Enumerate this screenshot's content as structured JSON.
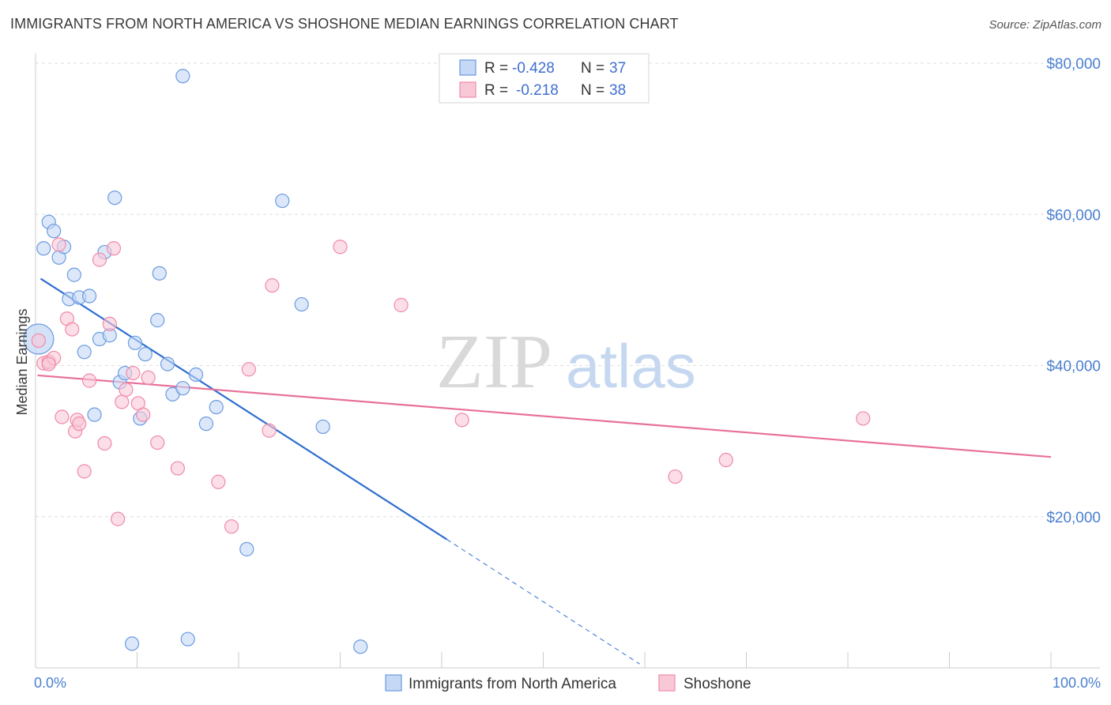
{
  "header": {
    "title": "IMMIGRANTS FROM NORTH AMERICA VS SHOSHONE MEDIAN EARNINGS CORRELATION CHART",
    "source": "Source: ZipAtlas.com"
  },
  "watermark": {
    "zip": "ZIP",
    "atlas": "atlas"
  },
  "legend": {
    "rows": [
      {
        "r_label": "R =",
        "r_value": "-0.428",
        "n_label": "N =",
        "n_value": "37"
      },
      {
        "r_label": "R =",
        "r_value": "-0.218",
        "n_label": "N =",
        "n_value": "38"
      }
    ]
  },
  "bottom_legend": {
    "series1": "Immigrants from North America",
    "series2": "Shoshone"
  },
  "colors": {
    "blue": "#6b9be0",
    "pink": "#f08aa8",
    "blue_line": "#2f6fd0",
    "pink_line": "#e8709a"
  },
  "chart_data": {
    "type": "scatter",
    "title": "IMMIGRANTS FROM NORTH AMERICA VS SHOSHONE MEDIAN EARNINGS CORRELATION CHART",
    "xlabel": "",
    "ylabel": "Median Earnings",
    "xlim": [
      0,
      100
    ],
    "ylim": [
      0,
      80000
    ],
    "x_tick_labels": [
      "0.0%",
      "100.0%"
    ],
    "y_ticks": [
      20000,
      40000,
      60000,
      80000
    ],
    "y_tick_labels": [
      "$20,000",
      "$40,000",
      "$60,000",
      "$80,000"
    ],
    "series": [
      {
        "name": "Immigrants from North America",
        "color": "#6b9be0",
        "points": [
          [
            0.3,
            43500
          ],
          [
            0.8,
            55500
          ],
          [
            1.3,
            59000
          ],
          [
            1.8,
            57800
          ],
          [
            2.3,
            54300
          ],
          [
            2.8,
            55700
          ],
          [
            3.3,
            48800
          ],
          [
            3.8,
            52000
          ],
          [
            4.3,
            49000
          ],
          [
            4.8,
            41800
          ],
          [
            5.3,
            49200
          ],
          [
            5.8,
            33500
          ],
          [
            6.3,
            43500
          ],
          [
            6.8,
            55000
          ],
          [
            7.3,
            44000
          ],
          [
            7.8,
            62200
          ],
          [
            8.3,
            37800
          ],
          [
            8.8,
            39000
          ],
          [
            9.5,
            3200
          ],
          [
            9.8,
            43000
          ],
          [
            10.3,
            33000
          ],
          [
            10.8,
            41500
          ],
          [
            12.0,
            46000
          ],
          [
            12.2,
            52200
          ],
          [
            13.0,
            40200
          ],
          [
            13.5,
            36200
          ],
          [
            14.5,
            37000
          ],
          [
            14.5,
            78300
          ],
          [
            15.0,
            3800
          ],
          [
            15.8,
            38800
          ],
          [
            16.8,
            32300
          ],
          [
            17.8,
            34500
          ],
          [
            20.8,
            15700
          ],
          [
            24.3,
            61800
          ],
          [
            26.2,
            48100
          ],
          [
            28.3,
            31900
          ],
          [
            32.0,
            2800
          ]
        ],
        "trend": {
          "x": [
            0.5,
            40.5
          ],
          "y": [
            51500,
            17000
          ],
          "dashed_to": [
            59.5,
            500
          ]
        }
      },
      {
        "name": "Shoshone",
        "color": "#f08aa8",
        "points": [
          [
            0.3,
            43300
          ],
          [
            0.8,
            40300
          ],
          [
            1.3,
            40500
          ],
          [
            1.8,
            41000
          ],
          [
            2.3,
            56000
          ],
          [
            2.6,
            33200
          ],
          [
            3.1,
            46200
          ],
          [
            3.6,
            44800
          ],
          [
            3.9,
            31300
          ],
          [
            4.1,
            32800
          ],
          [
            4.3,
            32300
          ],
          [
            4.8,
            26000
          ],
          [
            5.3,
            38000
          ],
          [
            6.3,
            54000
          ],
          [
            6.8,
            29700
          ],
          [
            7.3,
            45500
          ],
          [
            7.7,
            55500
          ],
          [
            8.1,
            19700
          ],
          [
            8.5,
            35200
          ],
          [
            8.9,
            36800
          ],
          [
            9.6,
            39000
          ],
          [
            10.1,
            35000
          ],
          [
            10.6,
            33500
          ],
          [
            11.1,
            38400
          ],
          [
            12.0,
            29800
          ],
          [
            14.0,
            26400
          ],
          [
            18.0,
            24600
          ],
          [
            19.3,
            18700
          ],
          [
            21.0,
            39500
          ],
          [
            23.0,
            31400
          ],
          [
            23.3,
            50600
          ],
          [
            30.0,
            55700
          ],
          [
            36.0,
            48000
          ],
          [
            42.0,
            32800
          ],
          [
            63.0,
            25300
          ],
          [
            68.0,
            27500
          ],
          [
            81.5,
            33000
          ],
          [
            1.3,
            40200
          ]
        ],
        "trend": {
          "x": [
            0.2,
            100
          ],
          "y": [
            38700,
            27900
          ]
        }
      }
    ]
  }
}
